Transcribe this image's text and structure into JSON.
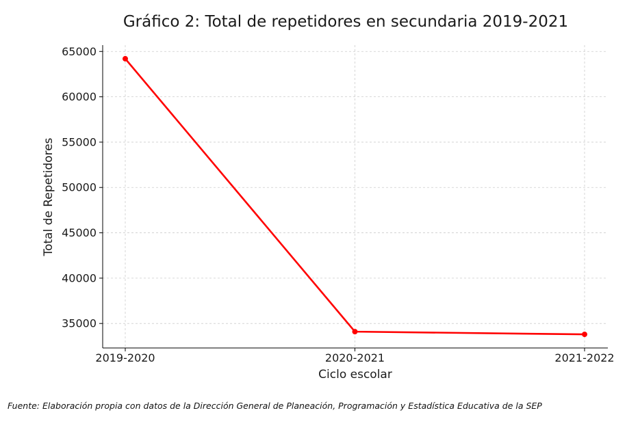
{
  "chart_data": {
    "type": "line",
    "title": "Gráfico 2: Total de repetidores en secundaria 2019-2021",
    "xlabel": "Ciclo escolar",
    "ylabel": "Total de Repetidores",
    "categories": [
      "2019-2020",
      "2020-2021",
      "2021-2022"
    ],
    "series": [
      {
        "values": [
          64200,
          34100,
          33800
        ],
        "color": "#ff0000"
      }
    ],
    "yticks": [
      35000,
      40000,
      45000,
      50000,
      55000,
      60000,
      65000
    ],
    "ytick_labels": [
      "35000",
      "40000",
      "45000",
      "50000",
      "55000",
      "60000",
      "65000"
    ],
    "ylim": [
      32300,
      65700
    ],
    "grid": true,
    "grid_color": "#cccccc"
  },
  "source_note": "Fuente: Elaboración propia con datos de la Dirección General de Planeación, Programación y Estadística Educativa de la SEP"
}
